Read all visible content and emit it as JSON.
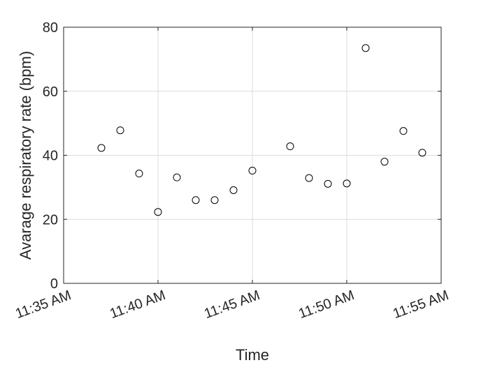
{
  "chart_data": {
    "type": "scatter",
    "title": "",
    "xlabel": "Time",
    "ylabel": "Avarage respiratory rate (bpm)",
    "x_ticks": [
      "11:35 AM",
      "11:40 AM",
      "11:45 AM",
      "11:50 AM",
      "11:55 AM"
    ],
    "y_ticks": [
      "0",
      "20",
      "40",
      "60",
      "80"
    ],
    "x_unit": "minutes",
    "xlim": [
      "11:35",
      "11:55"
    ],
    "ylim": [
      0,
      80
    ],
    "grid": true,
    "marker": "open-circle",
    "marker_color": "#000000",
    "series": [
      {
        "x": [
          "11:37",
          "11:38",
          "11:39",
          "11:40",
          "11:41",
          "11:42",
          "11:43",
          "11:44",
          "11:45",
          "11:47",
          "11:48",
          "11:49",
          "11:50",
          "11:51",
          "11:52",
          "11:53",
          "11:54"
        ],
        "y": [
          42.3,
          47.8,
          34.3,
          22.3,
          33.1,
          26.0,
          26.0,
          29.1,
          35.2,
          42.8,
          32.9,
          31.1,
          31.2,
          73.5,
          38.0,
          47.6,
          40.8
        ]
      }
    ]
  }
}
